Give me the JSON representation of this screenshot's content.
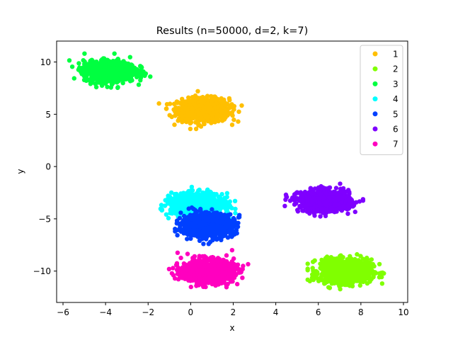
{
  "chart_data": {
    "type": "scatter",
    "title": "Results (n=50000, d=2, k=7)",
    "xlabel": "x",
    "ylabel": "y",
    "xlim": [
      -6.3,
      10.2
    ],
    "ylim": [
      -13,
      12
    ],
    "xticks": [
      -6,
      -4,
      -2,
      0,
      2,
      4,
      6,
      8,
      10
    ],
    "yticks": [
      -10,
      -5,
      0,
      5,
      10
    ],
    "grid": false,
    "legend_position": "top-right",
    "clusters": [
      {
        "name": "1",
        "color": "#ffbf00",
        "center": [
          0.6,
          5.4
        ],
        "spread": [
          0.6,
          0.55
        ],
        "extent_x": [
          -1.5,
          2.4
        ],
        "extent_y": [
          3.6,
          7.3
        ]
      },
      {
        "name": "2",
        "color": "#80ff00",
        "center": [
          7.3,
          -10.0
        ],
        "spread": [
          0.6,
          0.55
        ],
        "extent_x": [
          5.5,
          9.4
        ],
        "extent_y": [
          -11.8,
          -8.2
        ]
      },
      {
        "name": "3",
        "color": "#00ff40",
        "center": [
          -3.8,
          9.1
        ],
        "spread": [
          0.6,
          0.5
        ],
        "extent_x": [
          -5.7,
          -1.9
        ],
        "extent_y": [
          7.1,
          10.8
        ]
      },
      {
        "name": "4",
        "color": "#00ffff",
        "center": [
          0.3,
          -3.6
        ],
        "spread": [
          0.6,
          0.5
        ],
        "extent_x": [
          -1.8,
          2.1
        ],
        "extent_y": [
          -5.0,
          -1.7
        ]
      },
      {
        "name": "5",
        "color": "#0040ff",
        "center": [
          0.8,
          -5.6
        ],
        "spread": [
          0.6,
          0.55
        ],
        "extent_x": [
          -1.2,
          2.6
        ],
        "extent_y": [
          -7.4,
          -3.8
        ]
      },
      {
        "name": "6",
        "color": "#7f00ff",
        "center": [
          6.3,
          -3.3
        ],
        "spread": [
          0.6,
          0.5
        ],
        "extent_x": [
          4.4,
          8.1
        ],
        "extent_y": [
          -5.0,
          -1.5
        ]
      },
      {
        "name": "7",
        "color": "#ff00bf",
        "center": [
          0.8,
          -10.0
        ],
        "spread": [
          0.6,
          0.55
        ],
        "extent_x": [
          -1.2,
          2.7
        ],
        "extent_y": [
          -11.9,
          -8.0
        ]
      }
    ]
  }
}
